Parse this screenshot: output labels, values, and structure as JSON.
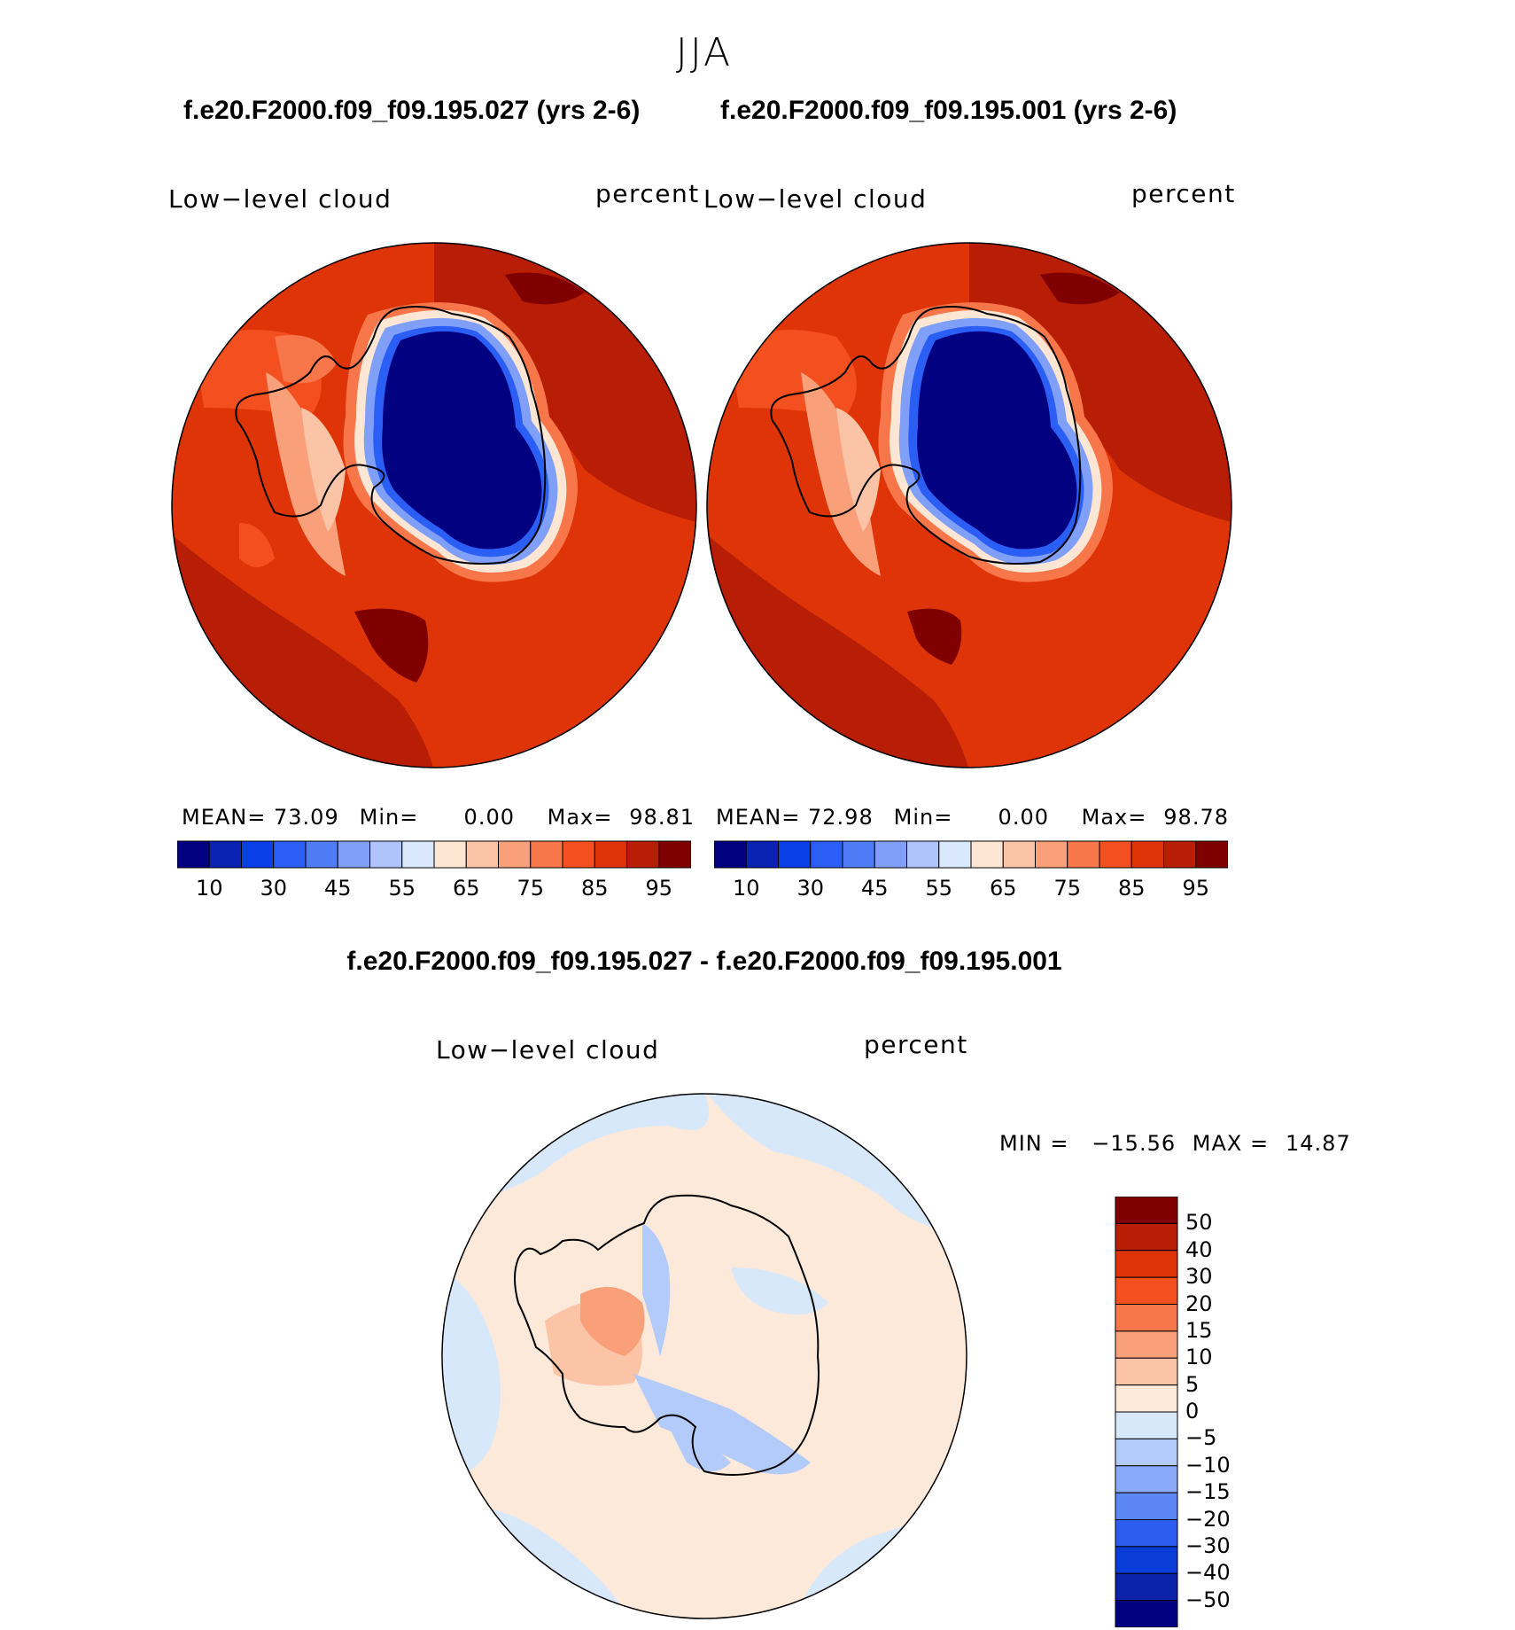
{
  "title": "JJA",
  "panels": [
    {
      "case_title": "f.e20.F2000.f09_f09.195.027 (yrs 2-6)",
      "variable": "Low−level cloud",
      "units": "percent",
      "mean_label": "MEAN=",
      "mean": "73.09",
      "min_label": "Min=",
      "min": "0.00",
      "max_label": "Max=",
      "max": "98.81"
    },
    {
      "case_title": "f.e20.F2000.f09_f09.195.001 (yrs 2-6)",
      "variable": "Low−level cloud",
      "units": "percent",
      "mean_label": "MEAN=",
      "mean": "72.98",
      "min_label": "Min=",
      "min": "0.00",
      "max_label": "Max=",
      "max": "98.78"
    }
  ],
  "colorbar": {
    "colors": [
      "#000080",
      "#0a23b4",
      "#0a3ee6",
      "#2a5ef5",
      "#4f7bf7",
      "#7f9ff9",
      "#aec4fb",
      "#d9e8fd",
      "#fde6d4",
      "#fcc4a6",
      "#f9a07a",
      "#f7764a",
      "#f44f1f",
      "#de3408",
      "#b81d06",
      "#800000"
    ],
    "tick_labels": [
      "10",
      "30",
      "45",
      "55",
      "65",
      "75",
      "85",
      "95"
    ]
  },
  "difference": {
    "title": "f.e20.F2000.f09_f09.195.027 - f.e20.F2000.f09_f09.195.001",
    "variable": "Low−level cloud",
    "units": "percent",
    "min_label": "MIN =",
    "min": "−15.56",
    "max_label": "MAX =",
    "max": "14.87",
    "colors": [
      "#800000",
      "#b81d06",
      "#de3408",
      "#f44f1f",
      "#f7764a",
      "#f9a07a",
      "#fcc4a6",
      "#fde9d9",
      "#d8e8fb",
      "#b3cbfb",
      "#8aa9f8",
      "#5d86f5",
      "#2c5cf0",
      "#0a3cd8",
      "#0a22a8",
      "#000080"
    ],
    "tick_labels": [
      "50",
      "40",
      "30",
      "20",
      "15",
      "10",
      "5",
      "0",
      "−5",
      "−10",
      "−15",
      "−20",
      "−30",
      "−40",
      "−50"
    ]
  }
}
